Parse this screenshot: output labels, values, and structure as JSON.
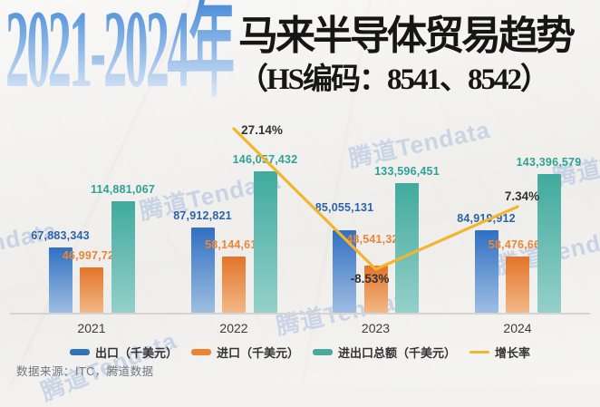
{
  "title": {
    "years": "2021-2024年",
    "main": "马来半导体贸易趋势",
    "subtitle": "（HS编码：8541、8542）"
  },
  "watermark_text": "腾道Tendata",
  "source_text": "数据来源：ITC，腾道数据",
  "colors": {
    "background": "#f2f1ee",
    "export_bar_top": "#3070c2",
    "export_bar_bottom": "#9fbde2",
    "import_bar_top": "#e37429",
    "import_bar_bottom": "#f2b887",
    "total_bar_top": "#41aa9e",
    "total_bar_bottom": "#94d0c9",
    "growth_line": "#f1b52f",
    "axis_line": "#d6d4d1",
    "title_gradient_top": "#4c8ed9",
    "title_gradient_bottom": "#e7eef7"
  },
  "chart_data": {
    "type": "bar",
    "categories": [
      "2021",
      "2022",
      "2023",
      "2024"
    ],
    "series": [
      {
        "name": "出口（千美元）",
        "type": "bar",
        "values": [
          67883343,
          87912821,
          85055131,
          84919912
        ],
        "labels": [
          "67,883,343",
          "87,912,821",
          "85,055,131",
          "84,919,912"
        ],
        "color_top": "#3070c2",
        "color_bottom": "#9fbde2",
        "label_color": "#2d63ab",
        "legend_color": "#3371be"
      },
      {
        "name": "进口（千美元）",
        "type": "bar",
        "values": [
          46997724,
          58144611,
          48541320,
          58476667
        ],
        "labels": [
          "46,997,724",
          "58,144,611",
          "48,541,320",
          "58,476,667"
        ],
        "color_top": "#e37429",
        "color_bottom": "#f2b887",
        "label_color": "#e8863a",
        "legend_color": "#ec8433"
      },
      {
        "name": "进出口总额（千美元）",
        "type": "bar",
        "values": [
          114881067,
          146057432,
          133596451,
          143396579
        ],
        "labels": [
          "114,881,067",
          "146,057,432",
          "133,596,451",
          "143,396,579"
        ],
        "color_top": "#41aa9e",
        "color_bottom": "#94d0c9",
        "label_color": "#2fa295",
        "legend_color": "#4aa89e"
      },
      {
        "name": "增长率",
        "type": "line",
        "values": [
          null,
          27.14,
          -8.53,
          7.34
        ],
        "labels": [
          null,
          "27.14%",
          "-8.53%",
          "7.34%"
        ],
        "color": "#f1b52f",
        "label_color": "#333333"
      }
    ],
    "ylim": [
      0,
      152000000
    ],
    "grid": false,
    "legend_position": "bottom"
  }
}
